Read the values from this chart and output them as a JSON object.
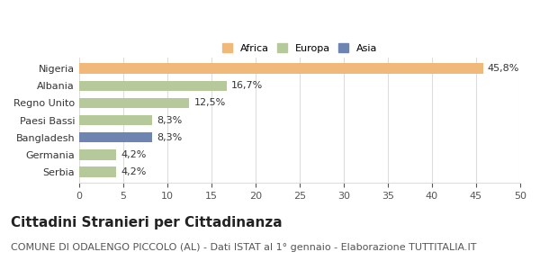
{
  "categories": [
    "Serbia",
    "Germania",
    "Bangladesh",
    "Paesi Bassi",
    "Regno Unito",
    "Albania",
    "Nigeria"
  ],
  "values": [
    4.2,
    4.2,
    8.3,
    8.3,
    12.5,
    16.7,
    45.8
  ],
  "labels": [
    "4,2%",
    "4,2%",
    "8,3%",
    "8,3%",
    "12,5%",
    "16,7%",
    "45,8%"
  ],
  "colors": [
    "#b5c99a",
    "#b5c99a",
    "#6e85b2",
    "#b5c99a",
    "#b5c99a",
    "#b5c99a",
    "#f0b97a"
  ],
  "legend_items": [
    {
      "label": "Africa",
      "color": "#f0b97a"
    },
    {
      "label": "Europa",
      "color": "#b5c99a"
    },
    {
      "label": "Asia",
      "color": "#6e85b2"
    }
  ],
  "xlim": [
    0,
    50
  ],
  "xticks": [
    0,
    5,
    10,
    15,
    20,
    25,
    30,
    35,
    40,
    45,
    50
  ],
  "title": "Cittadini Stranieri per Cittadinanza",
  "subtitle": "COMUNE DI ODALENGO PICCOLO (AL) - Dati ISTAT al 1° gennaio - Elaborazione TUTTITALIA.IT",
  "title_fontsize": 11,
  "subtitle_fontsize": 8,
  "label_fontsize": 8,
  "tick_fontsize": 8,
  "background_color": "#ffffff",
  "grid_color": "#dddddd"
}
